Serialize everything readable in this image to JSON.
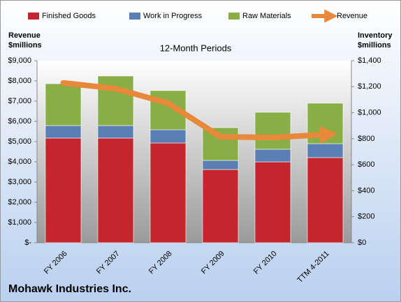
{
  "chart_data": {
    "type": "bar",
    "stacked": true,
    "title": "12-Month Periods",
    "y_axis_title": [
      "Revenue",
      "$millions"
    ],
    "y2_axis_title": [
      "Inventory",
      "$millions"
    ],
    "footer": "Mohawk Industries Inc.",
    "categories": [
      "FY 2006",
      "FY 2007",
      "FY 2008",
      "FY 2009",
      "FY 2010",
      "TTM 4-2011"
    ],
    "series": [
      {
        "name": "Finished Goods",
        "color": "#c4262e",
        "type": "bar",
        "axis": "y2",
        "values": [
          805,
          805,
          767,
          563,
          622,
          655
        ]
      },
      {
        "name": "Work in Progress",
        "color": "#5a7fb4",
        "type": "bar",
        "axis": "y2",
        "values": [
          96,
          96,
          102,
          70,
          97,
          107
        ]
      },
      {
        "name": "Raw Materials",
        "color": "#8aae46",
        "type": "bar",
        "axis": "y2",
        "values": [
          322,
          381,
          301,
          252,
          284,
          311
        ]
      },
      {
        "name": "Revenue",
        "color": "#e8883a",
        "type": "line",
        "axis": "y",
        "values": [
          7900,
          7620,
          6900,
          5240,
          5200,
          5350
        ]
      }
    ],
    "ylim": [
      0,
      9000
    ],
    "yticks": [
      {
        "value": 0,
        "label": "$-"
      },
      {
        "value": 1000,
        "label": "$1,000"
      },
      {
        "value": 2000,
        "label": "$2,000"
      },
      {
        "value": 3000,
        "label": "$3,000"
      },
      {
        "value": 4000,
        "label": "$4,000"
      },
      {
        "value": 5000,
        "label": "$5,000"
      },
      {
        "value": 6000,
        "label": "$6,000"
      },
      {
        "value": 7000,
        "label": "$7,000"
      },
      {
        "value": 8000,
        "label": "$8,000"
      },
      {
        "value": 9000,
        "label": "$9,000"
      }
    ],
    "y2lim": [
      0,
      1400
    ],
    "y2ticks": [
      {
        "value": 0,
        "label": "$0"
      },
      {
        "value": 200,
        "label": "$200"
      },
      {
        "value": 400,
        "label": "$400"
      },
      {
        "value": 600,
        "label": "$600"
      },
      {
        "value": 800,
        "label": "$800"
      },
      {
        "value": 1000,
        "label": "$1,000"
      },
      {
        "value": 1200,
        "label": "$1,200"
      },
      {
        "value": 1400,
        "label": "$1,400"
      }
    ]
  }
}
